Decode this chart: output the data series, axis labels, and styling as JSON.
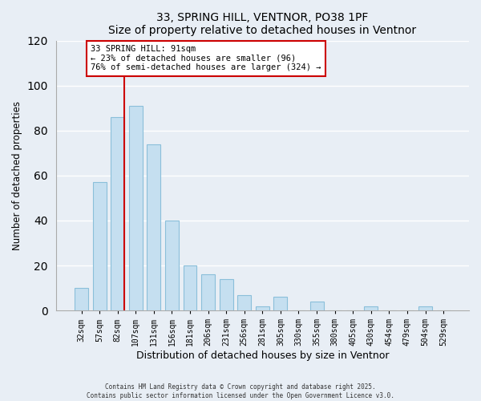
{
  "title": "33, SPRING HILL, VENTNOR, PO38 1PF",
  "subtitle": "Size of property relative to detached houses in Ventnor",
  "xlabel": "Distribution of detached houses by size in Ventnor",
  "ylabel": "Number of detached properties",
  "bar_labels": [
    "32sqm",
    "57sqm",
    "82sqm",
    "107sqm",
    "131sqm",
    "156sqm",
    "181sqm",
    "206sqm",
    "231sqm",
    "256sqm",
    "281sqm",
    "305sqm",
    "330sqm",
    "355sqm",
    "380sqm",
    "405sqm",
    "430sqm",
    "454sqm",
    "479sqm",
    "504sqm",
    "529sqm"
  ],
  "bar_values": [
    10,
    57,
    86,
    91,
    74,
    40,
    20,
    16,
    14,
    7,
    2,
    6,
    0,
    4,
    0,
    0,
    2,
    0,
    0,
    2,
    0
  ],
  "bar_color": "#c5dff0",
  "bar_edge_color": "#8bbfda",
  "ylim": [
    0,
    120
  ],
  "yticks": [
    0,
    20,
    40,
    60,
    80,
    100,
    120
  ],
  "property_line_color": "#cc0000",
  "annotation_title": "33 SPRING HILL: 91sqm",
  "annotation_line1": "← 23% of detached houses are smaller (96)",
  "annotation_line2": "76% of semi-detached houses are larger (324) →",
  "footer1": "Contains HM Land Registry data © Crown copyright and database right 2025.",
  "footer2": "Contains public sector information licensed under the Open Government Licence v3.0.",
  "bg_color": "#e8eef5",
  "grid_color": "#d0dae6"
}
